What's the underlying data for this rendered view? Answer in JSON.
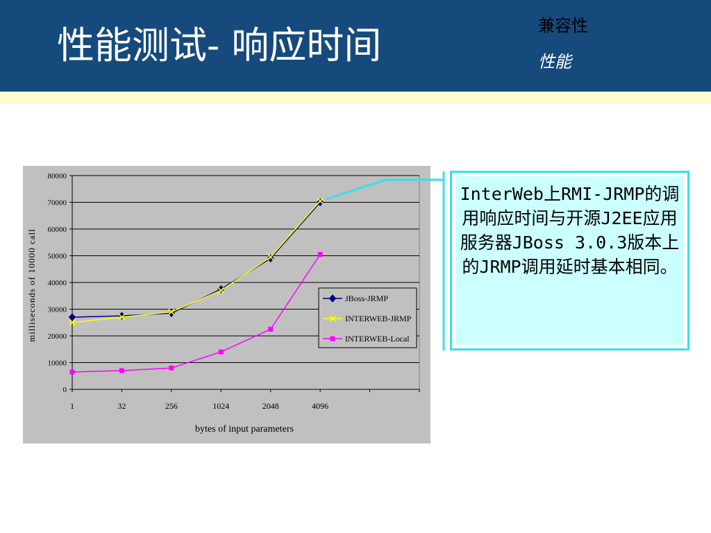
{
  "slide": {
    "title": "性能测试- 响应时间",
    "tag_primary": "兼容性",
    "tag_secondary": "性能",
    "callout_text": "InterWeb上RMI-JRMP的调用响应时间与开源J2EE应用服务器JBoss 3.0.3版本上的JRMP调用延时基本相同。"
  },
  "colors": {
    "header_bg": "#164a7c",
    "header_rule": "#fefbd0",
    "chart_bg": "#c0c0c0",
    "plot_bg": "#c0c0c0",
    "callout_border": "#33e0f0",
    "callout_fill": "#ccffff"
  },
  "chart_data": {
    "type": "line",
    "title": "",
    "xlabel": "bytes of input parameters",
    "ylabel": "milliseconds of 10000 call",
    "categories": [
      "1",
      "32",
      "256",
      "1024",
      "2048",
      "4096"
    ],
    "ylim": [
      0,
      80000
    ],
    "yticks": [
      0,
      10000,
      20000,
      30000,
      40000,
      50000,
      60000,
      70000,
      80000
    ],
    "grid": true,
    "legend_position": "right",
    "series": [
      {
        "name": "JBoss-JRMP",
        "color": "#000080",
        "marker": "diamond",
        "values": [
          27000,
          27500,
          28500,
          37500,
          49000,
          70000
        ]
      },
      {
        "name": "INTERWEB-JRMP",
        "color": "#ffff00",
        "marker": "x",
        "values": [
          25000,
          27000,
          29000,
          37000,
          49500,
          70500
        ]
      },
      {
        "name": "INTERWEB-Local",
        "color": "#ff00ff",
        "marker": "square",
        "values": [
          6500,
          7000,
          8000,
          14000,
          22500,
          50500
        ]
      }
    ]
  }
}
